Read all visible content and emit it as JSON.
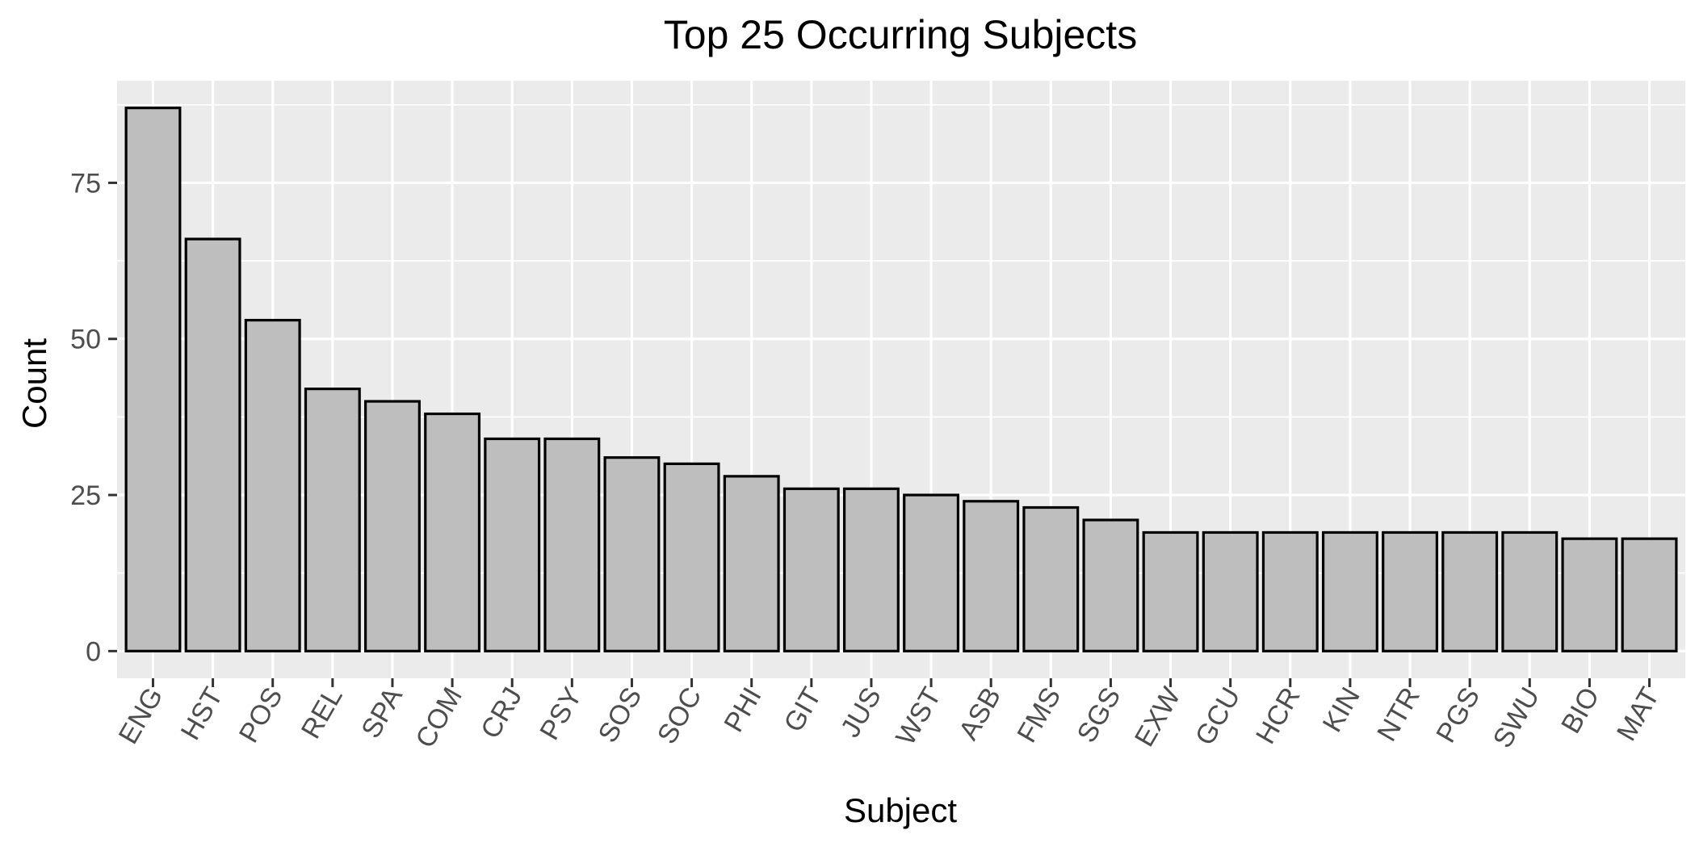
{
  "chart_data": {
    "type": "bar",
    "title": "Top 25 Occurring Subjects",
    "xlabel": "Subject",
    "ylabel": "Count",
    "categories": [
      "ENG",
      "HST",
      "POS",
      "REL",
      "SPA",
      "COM",
      "CRJ",
      "PSY",
      "SOS",
      "SOC",
      "PHI",
      "GIT",
      "JUS",
      "WST",
      "ASB",
      "FMS",
      "SGS",
      "EXW",
      "GCU",
      "HCR",
      "KIN",
      "NTR",
      "PGS",
      "SWU",
      "BIO",
      "MAT"
    ],
    "values": [
      87,
      66,
      53,
      42,
      40,
      38,
      34,
      34,
      31,
      30,
      28,
      26,
      26,
      25,
      24,
      23,
      21,
      19,
      19,
      19,
      19,
      19,
      19,
      19,
      18,
      18
    ],
    "y_ticks": [
      0,
      25,
      50,
      75
    ],
    "ylim": [
      -4.35,
      91.35
    ],
    "grid": true,
    "x_tick_rotation": "60 degrees",
    "colors": {
      "panel_background": "#ebebeb",
      "grid_line": "#ffffff",
      "bar_fill": "#bebebe",
      "bar_outline": "#000000",
      "tick_label": "#4d4d4d"
    }
  }
}
